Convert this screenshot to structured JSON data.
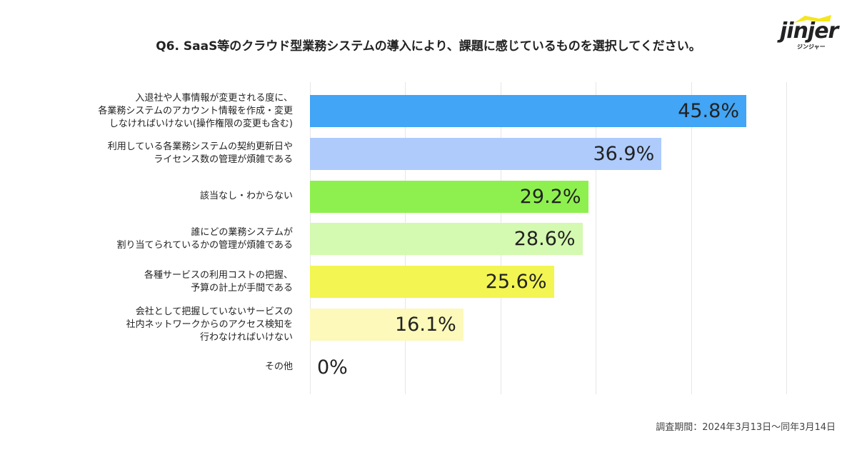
{
  "title": "Q6. SaaS等のクラウド型業務システムの導入により、課題に感じているものを選択してください。",
  "logo": {
    "text": "jinjer",
    "sub": "ジンジャー"
  },
  "footnote": "調査期間：2024年3月13日〜同年3月14日",
  "chart_data": {
    "type": "bar",
    "orientation": "horizontal",
    "title": "Q6. SaaS等のクラウド型業務システムの導入により、課題に感じているものを選択してください。",
    "xlim": [
      0,
      50
    ],
    "grid": true,
    "categories": [
      "入退社や人事情報が変更される度に、\n各業務システムのアカウント情報を作成・変更\nしなければいけない(操作権限の変更も含む)",
      "利用している各業務システムの契約更新日や\nライセンス数の管理が煩雑である",
      "該当なし・わからない",
      "誰にどの業務システムが\n割り当てられているかの管理が煩雑である",
      "各種サービスの利用コストの把握、\n予算の計上が手間である",
      "会社として把握していないサービスの\n社内ネットワークからのアクセス検知を\n行わなければいけない",
      "その他"
    ],
    "values": [
      45.8,
      36.9,
      29.2,
      28.6,
      25.6,
      16.1,
      0
    ],
    "value_labels": [
      "45.8%",
      "36.9%",
      "29.2%",
      "28.6%",
      "25.6%",
      "16.1%",
      "0%"
    ],
    "colors": [
      "#42a5f5",
      "#aecbfb",
      "#8ef04e",
      "#d4f9b0",
      "#f3f552",
      "#fcf9ba",
      "#ffffff"
    ]
  }
}
